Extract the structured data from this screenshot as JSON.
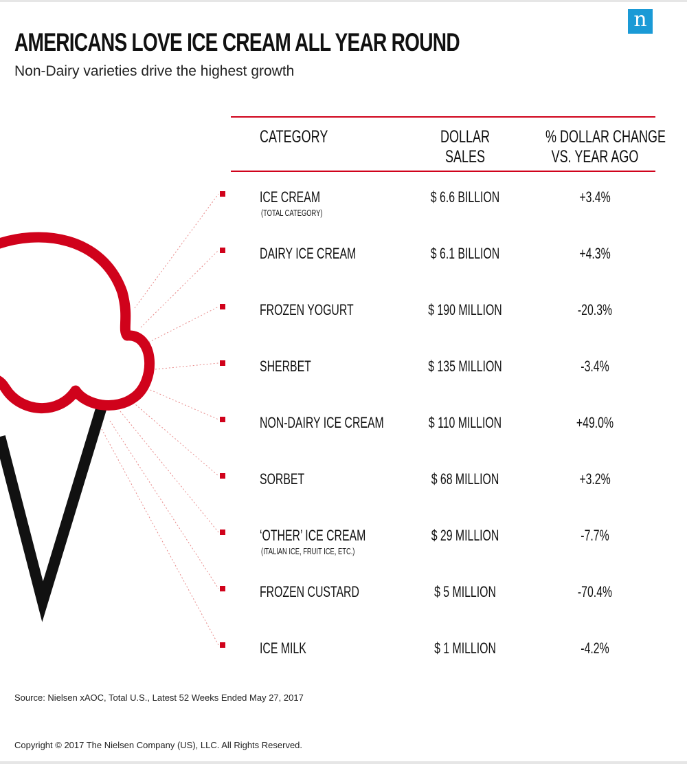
{
  "brand": {
    "logo_letter": "n",
    "logo_color": "#1a9ad6"
  },
  "title": "AMERICANS LOVE ICE CREAM ALL YEAR ROUND",
  "subtitle": "Non-Dairy varieties drive the highest growth",
  "colors": {
    "accent": "#d0021b",
    "cone": "#111111"
  },
  "chart_data": {
    "type": "table",
    "columns": [
      "CATEGORY",
      "DOLLAR SALES",
      "% DOLLAR CHANGE VS. YEAR AGO"
    ],
    "header": {
      "category": "CATEGORY",
      "sales_line1": "DOLLAR",
      "sales_line2": "SALES",
      "change_line1": "% DOLLAR CHANGE",
      "change_line2": "VS. YEAR AGO"
    },
    "rows": [
      {
        "category": "ICE CREAM",
        "note": "(TOTAL CATEGORY)",
        "sales": "$ 6.6 BILLION",
        "change": "+3.4%",
        "change_value": 3.4
      },
      {
        "category": "DAIRY ICE CREAM",
        "note": "",
        "sales": "$ 6.1 BILLION",
        "change": "+4.3%",
        "change_value": 4.3
      },
      {
        "category": "FROZEN YOGURT",
        "note": "",
        "sales": "$ 190 MILLION",
        "change": "-20.3%",
        "change_value": -20.3
      },
      {
        "category": "SHERBET",
        "note": "",
        "sales": "$ 135 MILLION",
        "change": "-3.4%",
        "change_value": -3.4
      },
      {
        "category": "NON-DAIRY ICE CREAM",
        "note": "",
        "sales": "$ 110 MILLION",
        "change": "+49.0%",
        "change_value": 49.0
      },
      {
        "category": "SORBET",
        "note": "",
        "sales": "$ 68 MILLION",
        "change": "+3.2%",
        "change_value": 3.2
      },
      {
        "category": "‘OTHER’ ICE CREAM",
        "note": "(ITALIAN ICE, FRUIT ICE, ETC.)",
        "sales": "$ 29 MILLION",
        "change": "-7.7%",
        "change_value": -7.7
      },
      {
        "category": "FROZEN CUSTARD",
        "note": "",
        "sales": "$ 5 MILLION",
        "change": "-70.4%",
        "change_value": -70.4
      },
      {
        "category": "ICE MILK",
        "note": "",
        "sales": "$ 1 MILLION",
        "change": "-4.2%",
        "change_value": -4.2
      }
    ]
  },
  "source": "Source: Nielsen xAOC, Total U.S., Latest 52 Weeks Ended May 27, 2017",
  "copyright": "Copyright © 2017 The Nielsen Company (US), LLC. All Rights Reserved."
}
